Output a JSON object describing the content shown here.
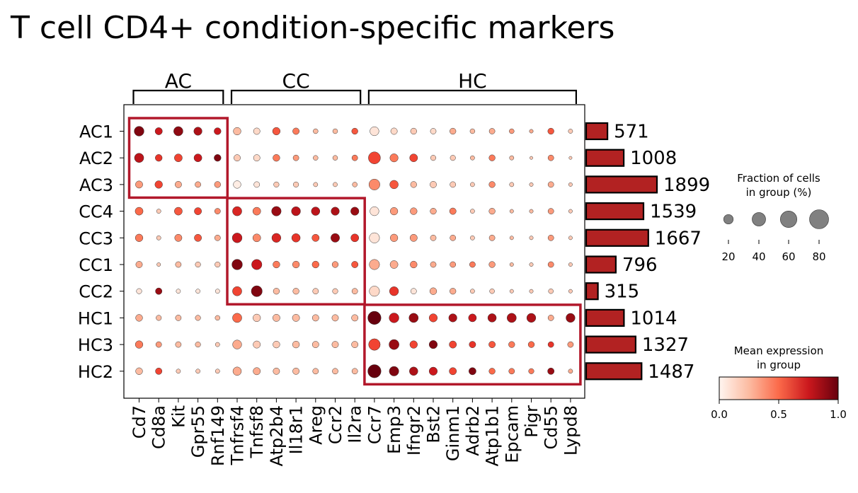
{
  "title": "T cell CD4+ condition-specific markers",
  "chart_data": {
    "type": "dotplot",
    "title": "T cell CD4+ condition-specific markers",
    "rows": [
      "AC1",
      "AC2",
      "AC3",
      "CC4",
      "CC3",
      "CC1",
      "CC2",
      "HC1",
      "HC3",
      "HC2"
    ],
    "columns": [
      "Cd7",
      "Cd8a",
      "Kit",
      "Gpr55",
      "Rnf149",
      "Tnfrsf4",
      "Tnfsf8",
      "Atp2b4",
      "Il18r1",
      "Areg",
      "Ccr2",
      "Il2ra",
      "Ccr7",
      "Emp3",
      "Ifngr2",
      "Bst2",
      "Ginm1",
      "Adrb2",
      "Atp1b1",
      "Epcam",
      "Pigr",
      "Cd55",
      "Lypd8"
    ],
    "column_groups": [
      {
        "label": "AC",
        "start": 0,
        "end": 4
      },
      {
        "label": "CC",
        "start": 5,
        "end": 11
      },
      {
        "label": "HC",
        "start": 12,
        "end": 22
      }
    ],
    "highlight_boxes": [
      {
        "row_start": 0,
        "row_end": 2,
        "col_start": 0,
        "col_end": 4
      },
      {
        "row_start": 3,
        "row_end": 6,
        "col_start": 5,
        "col_end": 11
      },
      {
        "row_start": 7,
        "row_end": 9,
        "col_start": 12,
        "col_end": 22
      }
    ],
    "fraction_percent": [
      [
        40,
        22,
        36,
        28,
        20,
        24,
        18,
        24,
        18,
        10,
        10,
        16,
        34,
        18,
        16,
        14,
        16,
        10,
        14,
        10,
        6,
        16,
        8
      ],
      [
        36,
        20,
        26,
        26,
        20,
        18,
        18,
        20,
        14,
        10,
        10,
        14,
        60,
        28,
        26,
        12,
        12,
        8,
        16,
        8,
        4,
        14,
        4
      ],
      [
        22,
        24,
        18,
        14,
        16,
        24,
        14,
        12,
        12,
        8,
        8,
        10,
        50,
        30,
        16,
        18,
        14,
        8,
        16,
        8,
        6,
        14,
        6
      ],
      [
        26,
        8,
        26,
        22,
        14,
        36,
        26,
        38,
        34,
        30,
        28,
        28,
        34,
        24,
        20,
        16,
        18,
        8,
        16,
        6,
        6,
        14,
        6
      ],
      [
        24,
        8,
        22,
        22,
        14,
        40,
        26,
        34,
        30,
        22,
        32,
        26,
        44,
        24,
        22,
        14,
        14,
        8,
        14,
        6,
        6,
        14,
        6
      ],
      [
        18,
        6,
        14,
        12,
        12,
        46,
        44,
        20,
        20,
        20,
        16,
        18,
        44,
        26,
        20,
        14,
        14,
        14,
        16,
        6,
        6,
        14,
        6
      ],
      [
        12,
        18,
        8,
        8,
        8,
        36,
        50,
        16,
        16,
        14,
        12,
        14,
        44,
        34,
        14,
        20,
        16,
        8,
        10,
        6,
        6,
        10,
        6
      ],
      [
        20,
        12,
        14,
        12,
        10,
        36,
        24,
        22,
        22,
        18,
        18,
        18,
        72,
        40,
        36,
        28,
        28,
        26,
        30,
        36,
        34,
        14,
        34
      ],
      [
        24,
        14,
        14,
        12,
        8,
        34,
        22,
        20,
        20,
        18,
        18,
        18,
        56,
        42,
        24,
        28,
        22,
        18,
        18,
        16,
        16,
        14,
        14
      ],
      [
        20,
        18,
        8,
        8,
        8,
        30,
        22,
        18,
        18,
        14,
        14,
        14,
        72,
        38,
        30,
        28,
        22,
        22,
        16,
        14,
        12,
        18,
        8
      ]
    ],
    "mean_expression": [
      [
        0.95,
        0.75,
        0.92,
        0.85,
        0.75,
        0.25,
        0.15,
        0.55,
        0.45,
        0.25,
        0.25,
        0.55,
        0.1,
        0.15,
        0.2,
        0.15,
        0.3,
        0.25,
        0.3,
        0.35,
        0.3,
        0.55,
        0.2
      ],
      [
        0.8,
        0.65,
        0.6,
        0.75,
        0.95,
        0.2,
        0.15,
        0.45,
        0.35,
        0.25,
        0.25,
        0.45,
        0.6,
        0.45,
        0.6,
        0.2,
        0.2,
        0.25,
        0.45,
        0.25,
        0.2,
        0.4,
        0.2
      ],
      [
        0.35,
        0.6,
        0.3,
        0.3,
        0.35,
        0.05,
        0.1,
        0.2,
        0.2,
        0.2,
        0.2,
        0.25,
        0.4,
        0.55,
        0.25,
        0.2,
        0.2,
        0.2,
        0.4,
        0.2,
        0.2,
        0.3,
        0.2
      ],
      [
        0.5,
        0.2,
        0.55,
        0.6,
        0.4,
        0.7,
        0.45,
        0.9,
        0.8,
        0.8,
        0.85,
        0.9,
        0.1,
        0.35,
        0.35,
        0.3,
        0.45,
        0.2,
        0.3,
        0.25,
        0.25,
        0.35,
        0.2
      ],
      [
        0.45,
        0.2,
        0.4,
        0.55,
        0.3,
        0.75,
        0.4,
        0.7,
        0.65,
        0.55,
        0.9,
        0.65,
        0.1,
        0.35,
        0.35,
        0.25,
        0.3,
        0.2,
        0.3,
        0.25,
        0.2,
        0.35,
        0.2
      ],
      [
        0.3,
        0.2,
        0.25,
        0.2,
        0.2,
        0.95,
        0.75,
        0.45,
        0.4,
        0.5,
        0.35,
        0.55,
        0.3,
        0.3,
        0.4,
        0.3,
        0.35,
        0.45,
        0.35,
        0.25,
        0.2,
        0.4,
        0.2
      ],
      [
        0.1,
        0.9,
        0.1,
        0.1,
        0.1,
        0.6,
        0.95,
        0.25,
        0.25,
        0.2,
        0.2,
        0.25,
        0.15,
        0.65,
        0.1,
        0.3,
        0.3,
        0.2,
        0.2,
        0.2,
        0.2,
        0.2,
        0.2
      ],
      [
        0.3,
        0.25,
        0.25,
        0.25,
        0.25,
        0.5,
        0.2,
        0.25,
        0.25,
        0.25,
        0.25,
        0.25,
        1.0,
        0.75,
        0.9,
        0.6,
        0.85,
        0.75,
        0.85,
        0.85,
        0.85,
        0.3,
        0.9
      ],
      [
        0.45,
        0.35,
        0.25,
        0.25,
        0.2,
        0.3,
        0.2,
        0.2,
        0.25,
        0.25,
        0.25,
        0.25,
        0.6,
        0.9,
        0.6,
        0.95,
        0.6,
        0.65,
        0.55,
        0.45,
        0.5,
        0.65,
        0.35
      ],
      [
        0.25,
        0.6,
        0.2,
        0.2,
        0.2,
        0.3,
        0.3,
        0.25,
        0.25,
        0.25,
        0.25,
        0.25,
        1.0,
        0.95,
        0.85,
        0.75,
        0.6,
        0.95,
        0.5,
        0.45,
        0.45,
        0.9,
        0.3
      ]
    ],
    "cell_counts": [
      571,
      1008,
      1899,
      1539,
      1667,
      796,
      315,
      1014,
      1327,
      1487
    ],
    "size_legend": {
      "title_line1": "Fraction of cells",
      "title_line2": "in group (%)",
      "ticks": [
        20,
        40,
        60,
        80
      ]
    },
    "color_legend": {
      "title_line1": "Mean expression",
      "title_line2": "in group",
      "ticks": [
        "0.0",
        "0.5",
        "1.0"
      ],
      "colormap": "Reds",
      "range": [
        0,
        1
      ]
    },
    "colors": {
      "highlight_box": "#b2182b",
      "bar_fill": "#b22222",
      "bar_edge": "#000000",
      "dot_edge": "#333333"
    }
  }
}
